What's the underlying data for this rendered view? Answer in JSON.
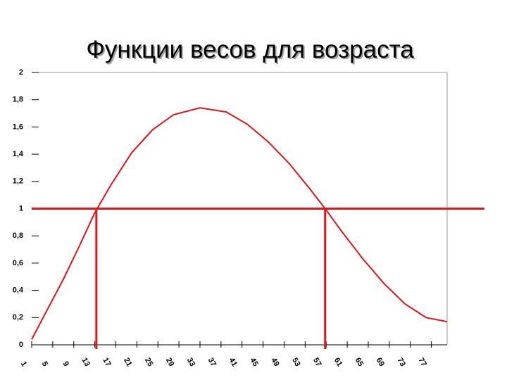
{
  "chart_data": {
    "type": "line",
    "title": "Функции весов для возраста",
    "x": [
      1,
      4,
      7,
      10,
      13,
      16,
      20,
      24,
      28,
      33,
      38,
      42,
      46,
      50,
      54,
      57,
      60,
      64,
      68,
      72,
      76,
      80
    ],
    "series": [
      {
        "color": "#e0161b",
        "values": [
          0.04,
          0.26,
          0.48,
          0.72,
          0.97,
          1.17,
          1.41,
          1.58,
          1.69,
          1.74,
          1.71,
          1.62,
          1.49,
          1.33,
          1.14,
          0.99,
          0.83,
          0.63,
          0.45,
          0.3,
          0.2,
          0.17
        ]
      }
    ],
    "xlim": [
      1,
      80
    ],
    "xticks": [
      1,
      5,
      9,
      13,
      17,
      21,
      25,
      29,
      33,
      37,
      41,
      45,
      49,
      53,
      57,
      61,
      65,
      69,
      73,
      77
    ],
    "ylim": [
      0,
      2
    ],
    "yticks": [
      0,
      {
        "value": 0.2,
        "label": "0,2"
      },
      {
        "value": 0.4,
        "label": "0,4"
      },
      {
        "value": 0.6,
        "label": "0,6"
      },
      {
        "value": 0.8,
        "label": "0,8"
      },
      1,
      {
        "value": 1.2,
        "label": "1,2"
      },
      {
        "value": 1.4,
        "label": "1,4"
      },
      {
        "value": 1.6,
        "label": "1,6"
      },
      {
        "value": 1.8,
        "label": "1,8"
      },
      2
    ],
    "reference_y": 1,
    "reference_x": [
      13.3,
      56.8
    ],
    "reference_color": "#e0161b"
  }
}
